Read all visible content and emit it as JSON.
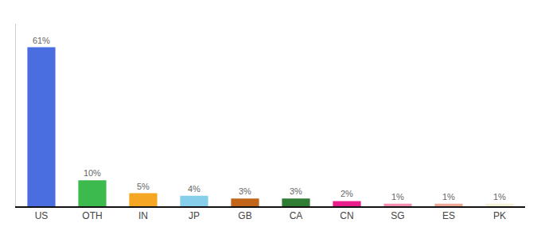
{
  "chart_data": {
    "type": "bar",
    "categories": [
      "US",
      "OTH",
      "IN",
      "JP",
      "GB",
      "CA",
      "CN",
      "SG",
      "ES",
      "PK"
    ],
    "values": [
      61,
      10,
      5,
      4,
      3,
      3,
      2,
      1,
      1,
      1
    ],
    "value_labels": [
      "61%",
      "10%",
      "5%",
      "4%",
      "3%",
      "3%",
      "2%",
      "1%",
      "1%",
      "1%"
    ],
    "data_labels": true,
    "colors": [
      "#4a6ee0",
      "#3dba4e",
      "#f5a623",
      "#87ceeb",
      "#c0651a",
      "#2e7d32",
      "#e91e8c",
      "#f48fb1",
      "#f0a898",
      "#f5f0d8"
    ],
    "ylim": [
      0,
      70
    ],
    "grid": false,
    "tick_labels": "x"
  }
}
